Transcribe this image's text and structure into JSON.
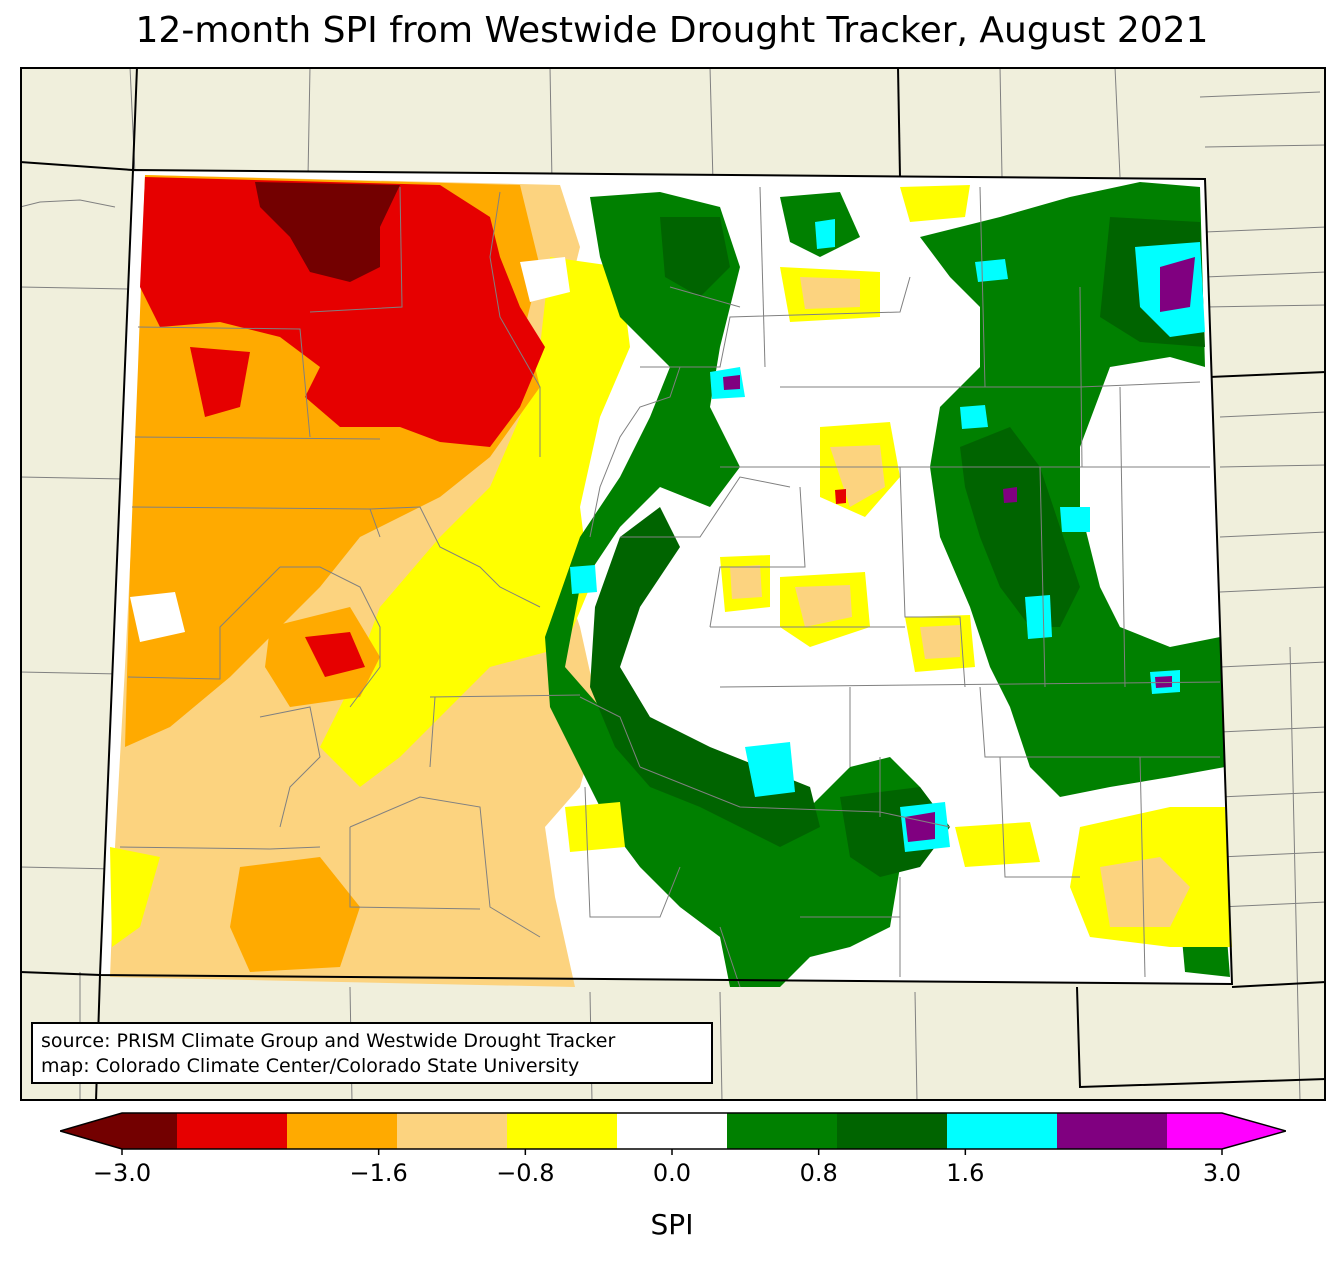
{
  "title": "12-month SPI from Westwide Drought Tracker, August 2021",
  "credits": {
    "source": "source: PRISM Climate Group and Westwide Drought Tracker",
    "map": "map: Colorado Climate Center/Colorado State University"
  },
  "colors": {
    "background_land": "#f0efdc",
    "state_fill_base": "#ffffff",
    "county_line": "#808080",
    "state_line": "#000000"
  },
  "legend": {
    "label": "SPI",
    "ticks": [
      "−3.0",
      "−1.6",
      "−0.8",
      "0.0",
      "0.8",
      "1.6",
      "3.0"
    ],
    "bins": [
      {
        "range": [
          -3.0,
          -2.4
        ],
        "color": "#730000"
      },
      {
        "range": [
          -2.4,
          -1.6
        ],
        "color": "#e60000"
      },
      {
        "range": [
          -1.6,
          -1.2
        ],
        "color": "#ffaa00"
      },
      {
        "range": [
          -1.2,
          -0.8
        ],
        "color": "#fcd37f"
      },
      {
        "range": [
          -0.8,
          -0.4
        ],
        "color": "#ffff00"
      },
      {
        "range": [
          -0.4,
          0.4
        ],
        "color": "#ffffff"
      },
      {
        "range": [
          0.4,
          0.8
        ],
        "color": "#008000"
      },
      {
        "range": [
          0.8,
          1.2
        ],
        "color": "#006400"
      },
      {
        "range": [
          1.2,
          1.6
        ],
        "color": "#00ffff"
      },
      {
        "range": [
          1.6,
          2.4
        ],
        "color": "#800080"
      },
      {
        "range": [
          2.4,
          3.0
        ],
        "color": "#ff00ff"
      }
    ],
    "extend": "both"
  }
}
